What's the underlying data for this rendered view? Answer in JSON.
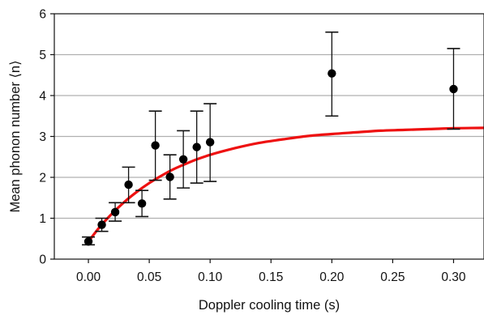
{
  "chart_data": {
    "type": "scatter",
    "title": "",
    "xlabel": "Doppler cooling time (s)",
    "ylabel": "Mean phonon number ⟨n⟩",
    "xlim": [
      -0.028,
      0.325
    ],
    "ylim": [
      0,
      6
    ],
    "xticks": [
      "0.00",
      "0.05",
      "0.10",
      "0.15",
      "0.20",
      "0.25",
      "0.30"
    ],
    "yticks": [
      "0",
      "1",
      "2",
      "3",
      "4",
      "5",
      "6"
    ],
    "grid": "horizontal",
    "colors": {
      "points": "#000000",
      "fit": "#ee1111",
      "grid": "#b0b0b0"
    },
    "series": [
      {
        "kind": "points-with-errorbars",
        "x": [
          0.0,
          0.011,
          0.022,
          0.033,
          0.044,
          0.055,
          0.067,
          0.078,
          0.089,
          0.1,
          0.2,
          0.3
        ],
        "y": [
          0.43,
          0.84,
          1.15,
          1.82,
          1.36,
          2.78,
          2.01,
          2.44,
          2.74,
          2.86,
          4.54,
          4.16
        ],
        "err_low": [
          0.35,
          0.68,
          0.93,
          1.38,
          1.04,
          1.93,
          1.47,
          1.74,
          1.86,
          1.9,
          3.5,
          3.18
        ],
        "err_high": [
          0.54,
          1.0,
          1.38,
          2.25,
          1.68,
          3.62,
          2.55,
          3.14,
          3.62,
          3.8,
          5.55,
          5.15
        ]
      },
      {
        "kind": "fit-curve",
        "x": [
          0.0,
          0.01,
          0.02,
          0.03,
          0.04,
          0.05,
          0.06,
          0.07,
          0.08,
          0.09,
          0.1,
          0.12,
          0.14,
          0.16,
          0.18,
          0.2,
          0.22,
          0.24,
          0.26,
          0.28,
          0.3,
          0.325
        ],
        "y": [
          0.43,
          0.81,
          1.13,
          1.41,
          1.65,
          1.86,
          2.04,
          2.2,
          2.33,
          2.45,
          2.55,
          2.71,
          2.84,
          2.93,
          3.01,
          3.06,
          3.1,
          3.14,
          3.16,
          3.18,
          3.2,
          3.21
        ]
      }
    ]
  }
}
